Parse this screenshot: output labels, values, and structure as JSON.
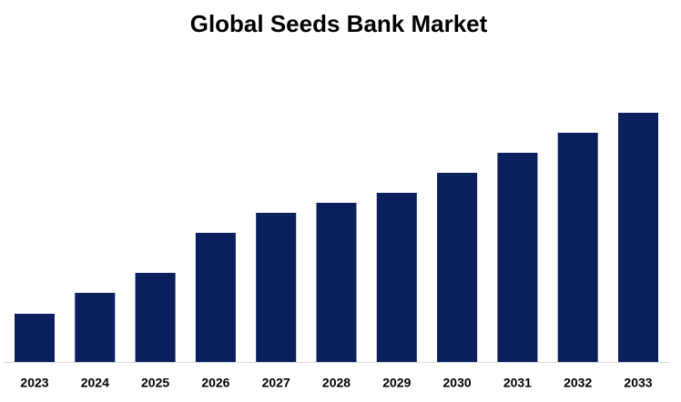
{
  "chart_data": {
    "type": "bar",
    "title": "Global Seeds Bank Market",
    "categories": [
      "2023",
      "2024",
      "2025",
      "2026",
      "2027",
      "2028",
      "2029",
      "2030",
      "2031",
      "2032",
      "2033"
    ],
    "values": [
      53,
      76,
      98,
      142,
      164,
      175,
      186,
      208,
      230,
      252,
      274
    ],
    "color": "#0b1f5c",
    "ylim": [
      0,
      300
    ]
  }
}
